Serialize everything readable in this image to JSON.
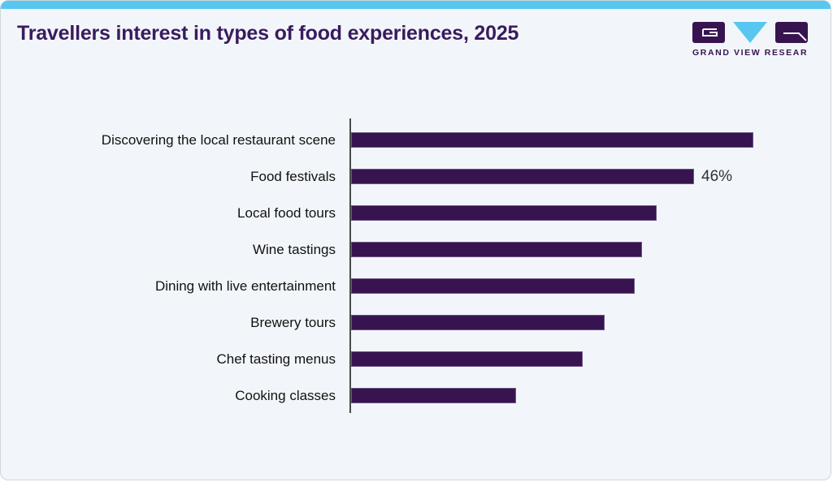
{
  "header": {
    "title": "Travellers interest in types of food experiences, 2025",
    "logo": {
      "icon": "gvr-logo-icon",
      "text": "GRAND VIEW RESEARCH"
    }
  },
  "chart_data": {
    "type": "bar",
    "orientation": "horizontal",
    "title": "Travellers interest in types of food experiences, 2025",
    "categories": [
      "Discovering the local restaurant scene",
      "Food festivals",
      "Local food tours",
      "Wine tastings",
      "Dining with live entertainment",
      "Brewery tours",
      "Chef tasting menus",
      "Cooking classes"
    ],
    "values": [
      54,
      46,
      41,
      39,
      38,
      34,
      31,
      22
    ],
    "unit": "%",
    "data_labels": [
      "",
      "46%",
      "",
      "",
      "",
      "",
      "",
      ""
    ],
    "xlabel": "",
    "ylabel": "",
    "xlim": [
      0,
      60
    ],
    "grid": false,
    "legend": false,
    "bar_color": "#371450",
    "axis_color": "#4a4a4a"
  },
  "colors": {
    "accent_strip": "#57c7f0",
    "background": "#f2f6fa",
    "title_text": "#3a1b5e",
    "bar_fill": "#371450",
    "category_text": "#111111",
    "value_text": "#30303a",
    "logo_purple": "#371450",
    "logo_cyan": "#57c7f0"
  }
}
